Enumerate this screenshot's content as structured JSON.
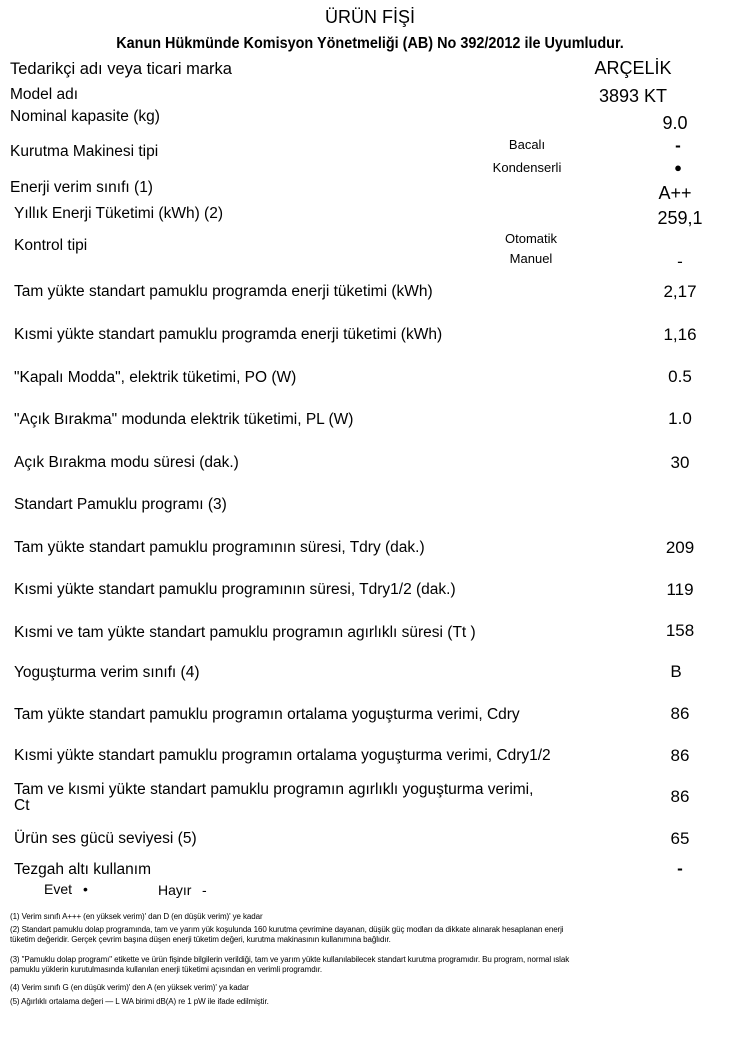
{
  "header": {
    "title": "ÜRÜN FİŞİ",
    "subtitle": "Kanun Hükmünde Komisyon Yönetmeliği (AB) No 392/2012 ile Uyumludur."
  },
  "rows": {
    "supplier": {
      "label": "Tedarikçi adı veya ticari marka",
      "value": "ARÇELİK"
    },
    "model": {
      "label": "Model adı",
      "value": "3893 KT"
    },
    "capacity": {
      "label": "Nominal kapasite (kg)",
      "value": "9.0"
    },
    "dryer_type": {
      "label": "Kurutma Makinesi tipi",
      "option1": "Bacalı",
      "value1": "-",
      "option2": "Kondenserli",
      "value2": "●"
    },
    "energy_class": {
      "label": "Enerji verim sınıfı (1)",
      "value": "A++"
    },
    "annual_energy": {
      "label": "Yıllık Enerji Tüketimi (kWh) (2)",
      "value": "259,1"
    },
    "control_type": {
      "label": "Kontrol tipi",
      "option1": "Otomatik",
      "option2": "Manuel",
      "value2": "-"
    },
    "full_energy": {
      "label": "Tam yükte standart pamuklu programda enerji tüketimi (kWh)",
      "value": "2,17"
    },
    "partial_energy": {
      "label": "Kısmi yükte standart pamuklu programda enerji tüketimi (kWh)",
      "value": "1,16"
    },
    "off_mode": {
      "label": "\"Kapalı Modda\", elektrik tüketimi, PO (W)",
      "value": "0.5"
    },
    "left_on": {
      "label": "\"Açık Bırakma\" modunda elektrik tüketimi, PL (W)",
      "value": "1.0"
    },
    "left_on_duration": {
      "label": "Açık Bırakma modu süresi (dak.)",
      "value": "30"
    },
    "standard_program": {
      "label": "Standart Pamuklu programı (3)"
    },
    "full_duration": {
      "label": "Tam yükte standart pamuklu programının süresi, Tdry (dak.)",
      "value": "209"
    },
    "partial_duration": {
      "label": "Kısmi yükte standart pamuklu programının süresi, Tdry1/2 (dak.)",
      "value": "119"
    },
    "weighted_duration": {
      "label": "Kısmi ve tam yükte standart pamuklu programın agırlıklı süresi (Tt )",
      "value": "158"
    },
    "condensation_class": {
      "label": "Yoguşturma verim sınıfı (4)",
      "value": "B"
    },
    "cdry": {
      "label": "Tam yükte standart pamuklu programın ortalama yoguşturma verimi, Cdry",
      "value": "86"
    },
    "cdry_half": {
      "label": "Kısmi yükte standart pamuklu programın ortalama yoguşturma verimi, Cdry1/2",
      "value": "86"
    },
    "ct": {
      "label_line1": "Tam ve kısmi yükte standart pamuklu programın agırlıklı yoguşturma verimi,",
      "label_line2": "Ct",
      "value": "86"
    },
    "sound": {
      "label": "Ürün ses gücü seviyesi (5)",
      "value": "65"
    },
    "built_in": {
      "label": "Tezgah altı kullanım",
      "yes_label": "Evet",
      "yes_value": "•",
      "no_label": "Hayır",
      "no_value": "-",
      "value": "-"
    }
  },
  "footnotes": [
    "(1) Verim sınıfı A+++ (en yüksek verim)' dan D (en düşük verim)' ye kadar",
    "(2) Standart pamuklu dolap programında, tam ve yarım yük koşulunda 160 kurutma çevrimine dayanan, düşük güç modları da dikkate alınarak hesaplanan enerji tüketim değeridir. Gerçek çevrim başına düşen enerji tüketim değeri, kurutma makinasının kullanımına bağlıdır.",
    "(3) \"Pamuklu dolap programı\" etikette ve ürün fişinde bilgilerin verildiği, tam ve yarım yükte kullanılabilecek standart kurutma programıdır. Bu program, normal ıslak pamuklu yüklerin kurutulmasında kullanılan enerji tüketimi açısından en verimli programdır.",
    "(4) Verim sınıfı G (en düşük verim)' den A (en yüksek verim)' ya kadar",
    "(5) Ağırlıklı ortalama değeri — L WA birimi dB(A) re 1 pW ile ifade edilmiştir."
  ]
}
